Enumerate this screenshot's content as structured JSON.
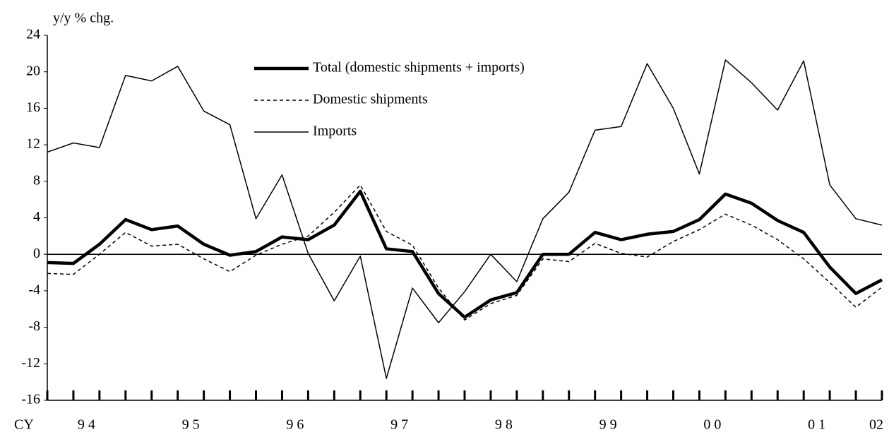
{
  "chart_data": {
    "type": "line",
    "y_label": "y/y % chg.",
    "x_prefix": "CY",
    "categories": [
      null,
      "9 4",
      null,
      null,
      null,
      "9 5",
      null,
      null,
      null,
      "9 6",
      null,
      null,
      null,
      "9 7",
      null,
      null,
      null,
      "9 8",
      null,
      null,
      null,
      "9 9",
      null,
      null,
      null,
      "0 0",
      null,
      null,
      null,
      "0 1",
      null,
      null,
      "02"
    ],
    "ylim": [
      -16,
      24
    ],
    "yticks": [
      -16,
      -12,
      -8,
      -4,
      0,
      4,
      8,
      12,
      16,
      20,
      24
    ],
    "series": [
      {
        "name": "Total (domestic shipments + imports)",
        "color": "#000000",
        "values": [
          -0.9,
          -1.0,
          1.1,
          3.8,
          2.7,
          3.1,
          1.1,
          -0.1,
          0.3,
          1.9,
          1.6,
          3.2,
          6.9,
          0.6,
          0.3,
          -4.3,
          -6.9,
          -5.0,
          -4.2,
          0.0,
          0.0,
          2.4,
          1.6,
          2.2,
          2.5,
          3.8,
          6.6,
          5.6,
          3.7,
          2.4,
          -1.4,
          -4.3,
          -2.8
        ]
      },
      {
        "name": "Domestic shipments",
        "color": "#000000",
        "values": [
          -2.1,
          -2.2,
          0.0,
          2.4,
          0.9,
          1.1,
          -0.5,
          -1.9,
          -0.1,
          1.1,
          2.0,
          4.6,
          7.6,
          2.5,
          1.0,
          -3.7,
          -7.2,
          -5.4,
          -4.5,
          -0.5,
          -0.8,
          1.2,
          0.1,
          -0.3,
          1.4,
          2.7,
          4.4,
          3.2,
          1.6,
          -0.5,
          -3.1,
          -5.8,
          -3.6
        ]
      },
      {
        "name": "Imports",
        "color": "#000000",
        "values": [
          11.2,
          12.2,
          11.7,
          19.6,
          19.0,
          20.6,
          15.7,
          14.2,
          3.9,
          8.7,
          0.1,
          -5.1,
          -0.2,
          -13.6,
          -3.7,
          -7.5,
          -4.1,
          0.0,
          -3.0,
          3.9,
          6.8,
          13.6,
          14.0,
          20.9,
          16.0,
          8.8,
          21.3,
          18.8,
          15.8,
          21.2,
          7.6,
          3.9,
          3.2
        ]
      }
    ]
  }
}
